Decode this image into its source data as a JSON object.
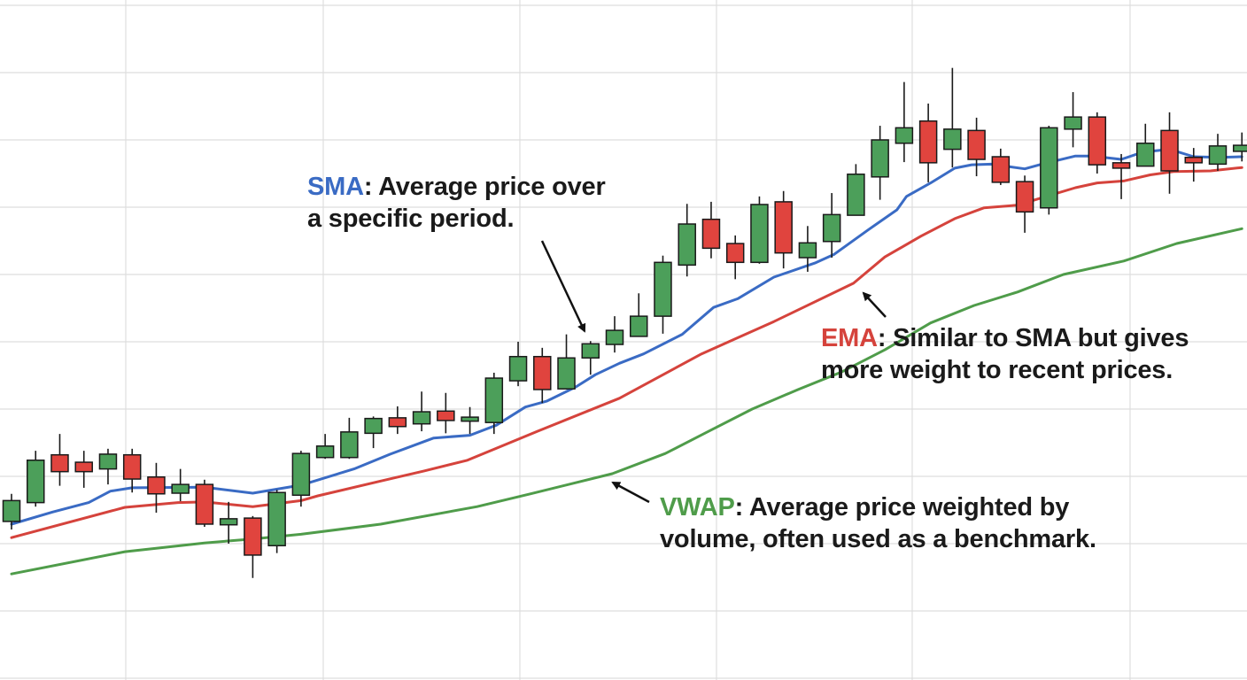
{
  "chart_data": {
    "type": "candlestick",
    "title": "",
    "xlabel": "",
    "ylabel": "",
    "grid": true,
    "ylim": [
      0,
      101
    ],
    "xlim": [
      1,
      52
    ],
    "colors": {
      "up": "#4c9f5a",
      "down": "#e0443e",
      "sma": "#3a6bc4",
      "ema": "#d5433c",
      "vwap": "#4f9c4a",
      "grid": "#dedede"
    },
    "candles": [
      {
        "o": 23.3,
        "h": 27.4,
        "l": 22.1,
        "c": 26.4
      },
      {
        "o": 26.1,
        "h": 33.8,
        "l": 25.5,
        "c": 32.4
      },
      {
        "o": 33.2,
        "h": 36.3,
        "l": 28.6,
        "c": 30.7
      },
      {
        "o": 32.1,
        "h": 33.8,
        "l": 28.3,
        "c": 30.7
      },
      {
        "o": 31.1,
        "h": 34.1,
        "l": 28.8,
        "c": 33.3
      },
      {
        "o": 33.2,
        "h": 34.1,
        "l": 27.6,
        "c": 29.6
      },
      {
        "o": 29.9,
        "h": 32.0,
        "l": 24.6,
        "c": 27.4
      },
      {
        "o": 27.5,
        "h": 31.1,
        "l": 26.3,
        "c": 28.8
      },
      {
        "o": 28.8,
        "h": 29.5,
        "l": 22.5,
        "c": 22.9
      },
      {
        "o": 22.8,
        "h": 26.2,
        "l": 20.0,
        "c": 23.7
      },
      {
        "o": 23.8,
        "h": 24.1,
        "l": 14.9,
        "c": 18.3
      },
      {
        "o": 19.7,
        "h": 28.0,
        "l": 18.6,
        "c": 27.6
      },
      {
        "o": 27.2,
        "h": 33.8,
        "l": 25.5,
        "c": 33.4
      },
      {
        "o": 32.8,
        "h": 36.3,
        "l": 32.6,
        "c": 34.5
      },
      {
        "o": 32.8,
        "h": 38.7,
        "l": 32.6,
        "c": 36.6
      },
      {
        "o": 36.4,
        "h": 38.9,
        "l": 34.2,
        "c": 38.6
      },
      {
        "o": 38.7,
        "h": 40.4,
        "l": 36.3,
        "c": 37.4
      },
      {
        "o": 37.8,
        "h": 42.6,
        "l": 36.7,
        "c": 39.6
      },
      {
        "o": 39.7,
        "h": 42.4,
        "l": 36.4,
        "c": 38.3
      },
      {
        "o": 38.2,
        "h": 40.3,
        "l": 36.3,
        "c": 38.8
      },
      {
        "o": 38.0,
        "h": 45.4,
        "l": 36.3,
        "c": 44.6
      },
      {
        "o": 44.2,
        "h": 50.0,
        "l": 43.4,
        "c": 47.8
      },
      {
        "o": 47.8,
        "h": 49.1,
        "l": 40.9,
        "c": 42.9
      },
      {
        "o": 43.0,
        "h": 51.1,
        "l": 42.9,
        "c": 47.6
      },
      {
        "o": 47.6,
        "h": 50.1,
        "l": 45.1,
        "c": 49.7
      },
      {
        "o": 49.6,
        "h": 53.8,
        "l": 48.4,
        "c": 51.7
      },
      {
        "o": 50.8,
        "h": 57.2,
        "l": 50.8,
        "c": 53.8
      },
      {
        "o": 53.8,
        "h": 62.8,
        "l": 51.2,
        "c": 61.8
      },
      {
        "o": 61.4,
        "h": 70.5,
        "l": 59.7,
        "c": 67.5
      },
      {
        "o": 68.2,
        "h": 70.8,
        "l": 62.4,
        "c": 63.9
      },
      {
        "o": 64.6,
        "h": 65.8,
        "l": 59.3,
        "c": 61.8
      },
      {
        "o": 61.8,
        "h": 71.6,
        "l": 61.6,
        "c": 70.4
      },
      {
        "o": 70.8,
        "h": 72.4,
        "l": 60.9,
        "c": 63.2
      },
      {
        "o": 62.5,
        "h": 67.2,
        "l": 60.4,
        "c": 64.7
      },
      {
        "o": 64.9,
        "h": 72.1,
        "l": 62.5,
        "c": 68.9
      },
      {
        "o": 68.8,
        "h": 76.4,
        "l": 68.8,
        "c": 74.9
      },
      {
        "o": 74.5,
        "h": 82.1,
        "l": 71.1,
        "c": 80.0
      },
      {
        "o": 79.5,
        "h": 88.6,
        "l": 76.7,
        "c": 81.8
      },
      {
        "o": 82.8,
        "h": 85.4,
        "l": 73.7,
        "c": 76.6
      },
      {
        "o": 78.6,
        "h": 90.7,
        "l": 75.9,
        "c": 81.6
      },
      {
        "o": 81.4,
        "h": 83.3,
        "l": 74.6,
        "c": 77.1
      },
      {
        "o": 77.5,
        "h": 78.7,
        "l": 73.3,
        "c": 73.7
      },
      {
        "o": 73.8,
        "h": 74.7,
        "l": 66.2,
        "c": 69.3
      },
      {
        "o": 69.9,
        "h": 82.1,
        "l": 68.9,
        "c": 81.8
      },
      {
        "o": 81.6,
        "h": 87.1,
        "l": 78.9,
        "c": 83.4
      },
      {
        "o": 83.4,
        "h": 84.1,
        "l": 75.0,
        "c": 76.3
      },
      {
        "o": 76.6,
        "h": 77.9,
        "l": 71.2,
        "c": 75.8
      },
      {
        "o": 76.1,
        "h": 82.4,
        "l": 76.1,
        "c": 79.5
      },
      {
        "o": 81.4,
        "h": 84.1,
        "l": 72.0,
        "c": 75.4
      },
      {
        "o": 77.4,
        "h": 78.8,
        "l": 73.8,
        "c": 76.6
      },
      {
        "o": 76.4,
        "h": 80.9,
        "l": 75.4,
        "c": 79.1
      },
      {
        "o": 78.3,
        "h": 81.1,
        "l": 76.8,
        "c": 79.2
      }
    ],
    "series": [
      {
        "name": "SMA",
        "color_key": "sma",
        "points": [
          [
            1,
            22.9
          ],
          [
            2.7,
            24.7
          ],
          [
            4.2,
            26.1
          ],
          [
            5.1,
            27.8
          ],
          [
            6.0,
            28.3
          ],
          [
            9.0,
            28.4
          ],
          [
            11.0,
            27.5
          ],
          [
            13.0,
            28.7
          ],
          [
            15.2,
            31.1
          ],
          [
            16.7,
            33.3
          ],
          [
            18.5,
            35.7
          ],
          [
            20.0,
            36.1
          ],
          [
            21.1,
            37.6
          ],
          [
            22.3,
            40.3
          ],
          [
            23.2,
            41.2
          ],
          [
            24.4,
            43.3
          ],
          [
            25.2,
            45.1
          ],
          [
            26.2,
            46.8
          ],
          [
            27.2,
            48.2
          ],
          [
            28.8,
            51.1
          ],
          [
            30.1,
            55.1
          ],
          [
            31.1,
            56.4
          ],
          [
            32.6,
            59.6
          ],
          [
            34.3,
            61.7
          ],
          [
            35.1,
            63.0
          ],
          [
            36.5,
            66.6
          ],
          [
            37.7,
            69.6
          ],
          [
            38.1,
            71.6
          ],
          [
            39.1,
            73.6
          ],
          [
            40.1,
            75.8
          ],
          [
            40.8,
            76.3
          ],
          [
            41.6,
            76.4
          ],
          [
            43.0,
            75.7
          ],
          [
            43.7,
            76.4
          ],
          [
            45.1,
            77.6
          ],
          [
            45.8,
            77.6
          ],
          [
            47.0,
            77.1
          ],
          [
            47.9,
            78.2
          ],
          [
            49.0,
            78.6
          ],
          [
            50.0,
            77.5
          ],
          [
            51.1,
            77.4
          ],
          [
            52.0,
            77.5
          ]
        ]
      },
      {
        "name": "EMA",
        "color_key": "ema",
        "points": [
          [
            1,
            20.9
          ],
          [
            5.7,
            25.4
          ],
          [
            7.9,
            26.1
          ],
          [
            9.0,
            26.2
          ],
          [
            11.0,
            25.5
          ],
          [
            13.0,
            26.4
          ],
          [
            13.7,
            27.1
          ],
          [
            16.3,
            29.3
          ],
          [
            18.1,
            30.8
          ],
          [
            19.9,
            32.4
          ],
          [
            22.8,
            36.7
          ],
          [
            26.2,
            41.6
          ],
          [
            29.6,
            48.2
          ],
          [
            32.6,
            53.0
          ],
          [
            35.9,
            58.7
          ],
          [
            37.2,
            62.6
          ],
          [
            38.7,
            65.7
          ],
          [
            40.1,
            68.3
          ],
          [
            41.3,
            69.9
          ],
          [
            42.7,
            70.3
          ],
          [
            43.7,
            71.4
          ],
          [
            45.1,
            72.9
          ],
          [
            46.0,
            73.6
          ],
          [
            47.1,
            73.9
          ],
          [
            48.2,
            74.8
          ],
          [
            49.2,
            75.3
          ],
          [
            50.7,
            75.4
          ],
          [
            52.0,
            75.9
          ]
        ]
      },
      {
        "name": "VWAP",
        "color_key": "vwap",
        "points": [
          [
            1,
            15.5
          ],
          [
            5.7,
            18.8
          ],
          [
            9.0,
            20.1
          ],
          [
            11.0,
            20.7
          ],
          [
            13.0,
            21.4
          ],
          [
            16.3,
            22.9
          ],
          [
            20.3,
            25.5
          ],
          [
            22.5,
            27.4
          ],
          [
            25.9,
            30.4
          ],
          [
            28.1,
            33.4
          ],
          [
            29.9,
            36.7
          ],
          [
            31.7,
            40.0
          ],
          [
            33.6,
            42.9
          ],
          [
            35.4,
            45.5
          ],
          [
            37.2,
            48.8
          ],
          [
            39.1,
            52.8
          ],
          [
            40.9,
            55.4
          ],
          [
            42.7,
            57.4
          ],
          [
            44.6,
            60.0
          ],
          [
            47.1,
            62.0
          ],
          [
            49.3,
            64.6
          ],
          [
            52.0,
            66.8
          ]
        ]
      }
    ],
    "annotations": {
      "sma": {
        "label": "SMA",
        "line1": ": Average price over",
        "line2": "a specific period."
      },
      "ema": {
        "label": "EMA",
        "line1": ": Similar to SMA but gives",
        "line2": "more weight to recent prices."
      },
      "vwap": {
        "label": "VWAP",
        "line1": ": Average price weighted by",
        "line2": "volume, often used as a benchmark."
      }
    }
  }
}
